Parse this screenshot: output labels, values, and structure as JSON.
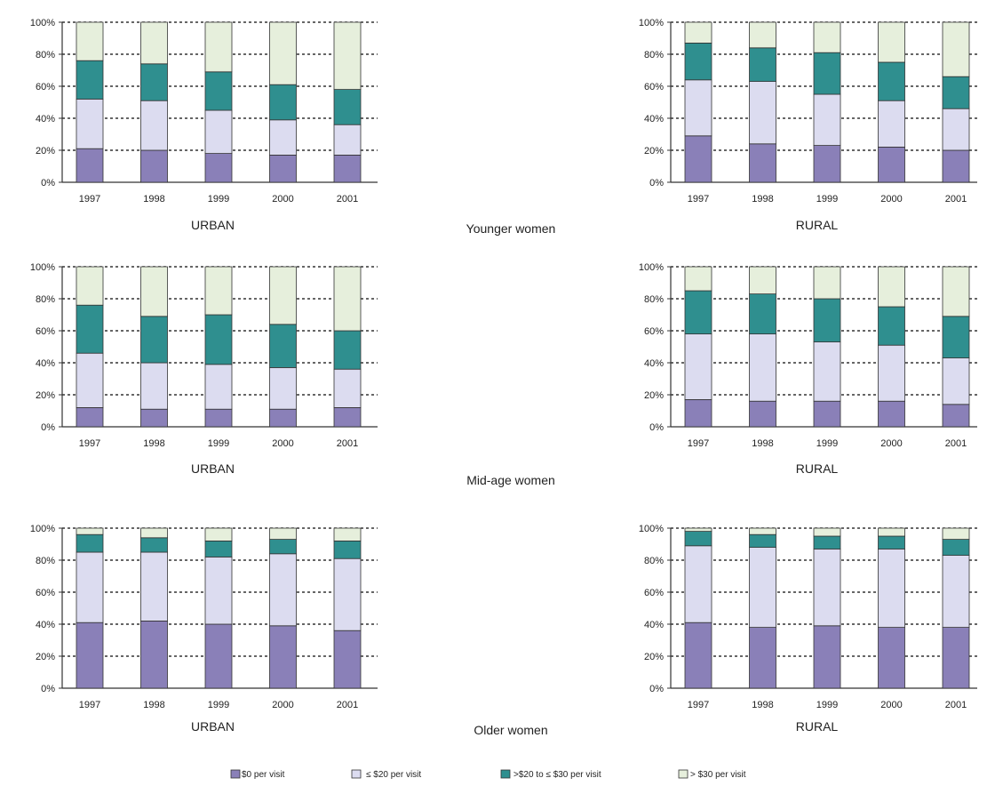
{
  "legend": [
    {
      "label": "$0 per visit",
      "color": "#8a80b8"
    },
    {
      "label": "≤ $20 per visit",
      "color": "#dcdcf0"
    },
    {
      "label": ">$20 to ≤ $30 per visit",
      "color": "#2f8f8f"
    },
    {
      "label": "> $30 per visit",
      "color": "#e6efdc"
    }
  ],
  "row_titles": [
    "Younger women",
    "Mid-age women",
    "Older women"
  ],
  "chart_data": [
    {
      "type": "bar",
      "stacked": true,
      "title": "URBAN",
      "row": "Younger women",
      "categories": [
        "1997",
        "1998",
        "1999",
        "2000",
        "2001"
      ],
      "y_ticks": [
        "0%",
        "20%",
        "40%",
        "60%",
        "80%",
        "100%"
      ],
      "ylim": [
        0,
        100
      ],
      "grid": "horizontal dashed",
      "series": [
        {
          "name": "$0 per visit",
          "values": [
            21,
            20,
            18,
            17,
            17
          ]
        },
        {
          "name": "≤ $20 per visit",
          "values": [
            31,
            31,
            27,
            22,
            19
          ]
        },
        {
          "name": ">$20 to ≤ $30 per visit",
          "values": [
            24,
            23,
            24,
            22,
            22
          ]
        },
        {
          "name": "> $30 per visit",
          "values": [
            24,
            26,
            31,
            39,
            42
          ]
        }
      ]
    },
    {
      "type": "bar",
      "stacked": true,
      "title": "RURAL",
      "row": "Younger women",
      "categories": [
        "1997",
        "1998",
        "1999",
        "2000",
        "2001"
      ],
      "y_ticks": [
        "0%",
        "20%",
        "40%",
        "60%",
        "80%",
        "100%"
      ],
      "ylim": [
        0,
        100
      ],
      "grid": "horizontal dashed",
      "series": [
        {
          "name": "$0 per visit",
          "values": [
            29,
            24,
            23,
            22,
            20
          ]
        },
        {
          "name": "≤ $20 per visit",
          "values": [
            35,
            39,
            32,
            29,
            26
          ]
        },
        {
          "name": ">$20 to ≤ $30 per visit",
          "values": [
            23,
            21,
            26,
            24,
            20
          ]
        },
        {
          "name": "> $30 per visit",
          "values": [
            13,
            16,
            19,
            25,
            34
          ]
        }
      ]
    },
    {
      "type": "bar",
      "stacked": true,
      "title": "URBAN",
      "row": "Mid-age women",
      "categories": [
        "1997",
        "1998",
        "1999",
        "2000",
        "2001"
      ],
      "y_ticks": [
        "0%",
        "20%",
        "40%",
        "60%",
        "80%",
        "100%"
      ],
      "ylim": [
        0,
        100
      ],
      "grid": "horizontal dashed",
      "series": [
        {
          "name": "$0 per visit",
          "values": [
            12,
            11,
            11,
            11,
            12
          ]
        },
        {
          "name": "≤ $20 per visit",
          "values": [
            34,
            29,
            28,
            26,
            24
          ]
        },
        {
          "name": ">$20 to ≤ $30 per visit",
          "values": [
            30,
            29,
            31,
            27,
            24
          ]
        },
        {
          "name": "> $30 per visit",
          "values": [
            24,
            31,
            30,
            36,
            40
          ]
        }
      ]
    },
    {
      "type": "bar",
      "stacked": true,
      "title": "RURAL",
      "row": "Mid-age women",
      "categories": [
        "1997",
        "1998",
        "1999",
        "2000",
        "2001"
      ],
      "y_ticks": [
        "0%",
        "20%",
        "40%",
        "60%",
        "80%",
        "100%"
      ],
      "ylim": [
        0,
        100
      ],
      "grid": "horizontal dashed",
      "series": [
        {
          "name": "$0 per visit",
          "values": [
            17,
            16,
            16,
            16,
            14
          ]
        },
        {
          "name": "≤ $20 per visit",
          "values": [
            41,
            42,
            37,
            35,
            29
          ]
        },
        {
          "name": ">$20 to ≤ $30 per visit",
          "values": [
            27,
            25,
            27,
            24,
            26
          ]
        },
        {
          "name": "> $30 per visit",
          "values": [
            15,
            17,
            20,
            25,
            31
          ]
        }
      ]
    },
    {
      "type": "bar",
      "stacked": true,
      "title": "URBAN",
      "row": "Older women",
      "categories": [
        "1997",
        "1998",
        "1999",
        "2000",
        "2001"
      ],
      "y_ticks": [
        "0%",
        "20%",
        "40%",
        "60%",
        "80%",
        "100%"
      ],
      "ylim": [
        0,
        100
      ],
      "grid": "horizontal dashed",
      "series": [
        {
          "name": "$0 per visit",
          "values": [
            41,
            42,
            40,
            39,
            36
          ]
        },
        {
          "name": "≤ $20 per visit",
          "values": [
            44,
            43,
            42,
            45,
            45
          ]
        },
        {
          "name": ">$20 to ≤ $30 per visit",
          "values": [
            11,
            9,
            10,
            9,
            11
          ]
        },
        {
          "name": "> $30 per visit",
          "values": [
            4,
            6,
            8,
            7,
            8
          ]
        }
      ]
    },
    {
      "type": "bar",
      "stacked": true,
      "title": "RURAL",
      "row": "Older women",
      "categories": [
        "1997",
        "1998",
        "1999",
        "2000",
        "2001"
      ],
      "y_ticks": [
        "0%",
        "20%",
        "40%",
        "60%",
        "80%",
        "100%"
      ],
      "ylim": [
        0,
        100
      ],
      "grid": "horizontal dashed",
      "series": [
        {
          "name": "$0 per visit",
          "values": [
            41,
            38,
            39,
            38,
            38
          ]
        },
        {
          "name": "≤ $20 per visit",
          "values": [
            48,
            50,
            48,
            49,
            45
          ]
        },
        {
          "name": ">$20 to ≤ $30 per visit",
          "values": [
            9,
            8,
            8,
            8,
            10
          ]
        },
        {
          "name": "> $30 per visit",
          "values": [
            2,
            4,
            5,
            5,
            7
          ]
        }
      ]
    }
  ]
}
